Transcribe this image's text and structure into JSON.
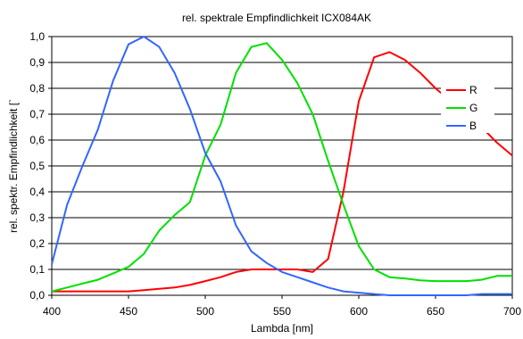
{
  "chart_data": {
    "type": "line",
    "title": "rel. spektrale Empfindlichkeit ICX084AK",
    "xlabel": "Lambda [nm]",
    "ylabel": "rel. spektr. Empfindlichkeit [`",
    "xlim": [
      400,
      700
    ],
    "ylim": [
      0,
      1.0
    ],
    "x_ticks": [
      "400",
      "450",
      "500",
      "550",
      "600",
      "650",
      "700"
    ],
    "y_ticks": [
      "0,0",
      "0,1",
      "0,2",
      "0,3",
      "0,4",
      "0,5",
      "0,6",
      "0,7",
      "0,8",
      "0,9",
      "1,0"
    ],
    "grid": "horizontal",
    "legend_position": "right",
    "series": [
      {
        "name": "R",
        "color": "#ff0000",
        "x": [
          400,
          410,
          420,
          430,
          440,
          450,
          460,
          470,
          480,
          490,
          500,
          510,
          520,
          530,
          540,
          550,
          560,
          570,
          580,
          590,
          600,
          610,
          620,
          630,
          640,
          650,
          660,
          670,
          680,
          690,
          700
        ],
        "y": [
          0.015,
          0.015,
          0.015,
          0.015,
          0.015,
          0.015,
          0.02,
          0.025,
          0.03,
          0.04,
          0.055,
          0.07,
          0.09,
          0.1,
          0.1,
          0.1,
          0.1,
          0.09,
          0.14,
          0.4,
          0.75,
          0.92,
          0.94,
          0.91,
          0.86,
          0.8,
          0.75,
          0.7,
          0.65,
          0.59,
          0.54
        ]
      },
      {
        "name": "G",
        "color": "#00e000",
        "x": [
          400,
          410,
          420,
          430,
          440,
          450,
          460,
          470,
          480,
          490,
          500,
          510,
          520,
          530,
          540,
          550,
          560,
          570,
          580,
          590,
          600,
          610,
          620,
          630,
          640,
          650,
          660,
          670,
          680,
          690,
          700
        ],
        "y": [
          0.015,
          0.03,
          0.045,
          0.06,
          0.085,
          0.11,
          0.16,
          0.25,
          0.31,
          0.36,
          0.54,
          0.66,
          0.86,
          0.96,
          0.975,
          0.91,
          0.82,
          0.7,
          0.52,
          0.35,
          0.19,
          0.1,
          0.07,
          0.065,
          0.058,
          0.055,
          0.055,
          0.055,
          0.06,
          0.075,
          0.075
        ]
      },
      {
        "name": "B",
        "color": "#3366ff",
        "x": [
          400,
          410,
          420,
          430,
          440,
          450,
          460,
          470,
          480,
          490,
          500,
          510,
          520,
          530,
          540,
          550,
          560,
          570,
          580,
          590,
          600,
          610,
          620,
          630,
          640,
          650,
          660,
          670,
          680,
          690,
          700
        ],
        "y": [
          0.12,
          0.35,
          0.5,
          0.64,
          0.83,
          0.97,
          1.0,
          0.96,
          0.86,
          0.72,
          0.55,
          0.44,
          0.27,
          0.17,
          0.125,
          0.09,
          0.07,
          0.05,
          0.03,
          0.015,
          0.01,
          0.005,
          0.0,
          0.0,
          0.0,
          0.0,
          0.0,
          0.0,
          0.005,
          0.005,
          0.005
        ]
      }
    ]
  }
}
